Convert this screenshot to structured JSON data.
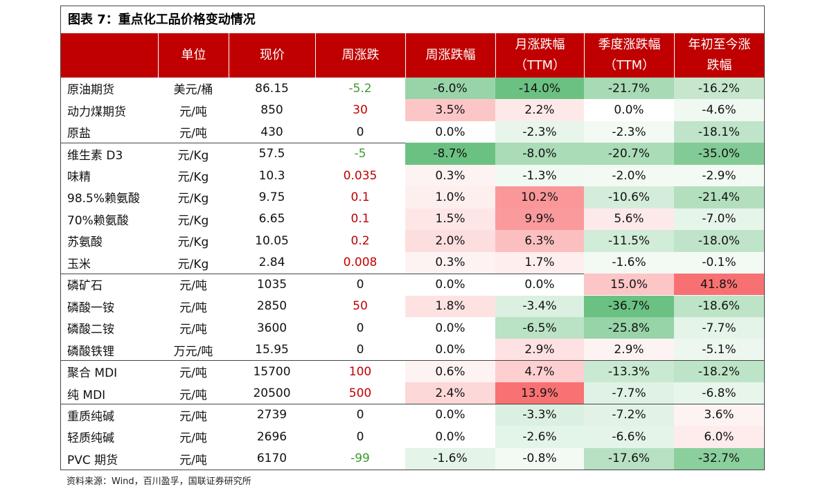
{
  "title": "图表 7：重点化工品价格变动情况",
  "table": {
    "headers": [
      [
        "单位"
      ],
      [
        "现价"
      ],
      [
        "周涨跌"
      ],
      [
        "周涨跌幅"
      ],
      [
        "月涨跌幅",
        "（TTM）"
      ],
      [
        "季度涨跌幅",
        "（TTM）"
      ],
      [
        "年初至今涨",
        "跌幅"
      ]
    ],
    "groups": [
      [
        [
          "原油期货",
          "美元/桶",
          "86.15",
          "-5.2",
          "-6.0%",
          "-14.0%",
          "-21.7%",
          "-16.2%"
        ],
        [
          "动力煤期货",
          "元/吨",
          "850",
          "30",
          "3.5%",
          "2.2%",
          "0.0%",
          "-4.6%"
        ],
        [
          "原盐",
          "元/吨",
          "430",
          "0",
          "0.0%",
          "-2.3%",
          "-2.3%",
          "-18.1%"
        ]
      ],
      [
        [
          "维生素 D3",
          "元/Kg",
          "57.5",
          "-5",
          "-8.7%",
          "-8.0%",
          "-20.7%",
          "-35.0%"
        ],
        [
          "味精",
          "元/Kg",
          "10.3",
          "0.035",
          "0.3%",
          "-1.3%",
          "-2.0%",
          "-2.9%"
        ],
        [
          "98.5%赖氨酸",
          "元/Kg",
          "9.75",
          "0.1",
          "1.0%",
          "10.2%",
          "-10.6%",
          "-21.4%"
        ],
        [
          "70%赖氨酸",
          "元/Kg",
          "6.65",
          "0.1",
          "1.5%",
          "9.9%",
          "5.6%",
          "-7.0%"
        ],
        [
          "苏氨酸",
          "元/Kg",
          "10.05",
          "0.2",
          "2.0%",
          "6.3%",
          "-11.5%",
          "-18.0%"
        ],
        [
          "玉米",
          "元/Kg",
          "2.84",
          "0.008",
          "0.3%",
          "1.7%",
          "-1.6%",
          "-0.1%"
        ]
      ],
      [
        [
          "磷矿石",
          "元/吨",
          "1035",
          "0",
          "0.0%",
          "0.0%",
          "15.0%",
          "41.8%"
        ],
        [
          "磷酸一铵",
          "元/吨",
          "2850",
          "50",
          "1.8%",
          "-3.4%",
          "-36.7%",
          "-18.6%"
        ],
        [
          "磷酸二铵",
          "元/吨",
          "3600",
          "0",
          "0.0%",
          "-6.5%",
          "-25.8%",
          "-7.7%"
        ],
        [
          "磷酸铁锂",
          "万元/吨",
          "15.95",
          "0",
          "0.0%",
          "2.9%",
          "2.9%",
          "-5.1%"
        ]
      ],
      [
        [
          "聚合 MDI",
          "元/吨",
          "15700",
          "100",
          "0.6%",
          "4.7%",
          "-13.3%",
          "-18.2%"
        ],
        [
          "纯 MDI",
          "元/吨",
          "20500",
          "500",
          "2.4%",
          "13.9%",
          "-7.7%",
          "-6.8%"
        ]
      ],
      [
        [
          "重质纯碱",
          "元/吨",
          "2739",
          "0",
          "0.0%",
          "-3.3%",
          "-7.2%",
          "3.6%"
        ],
        [
          "轻质纯碱",
          "元/吨",
          "2696",
          "0",
          "0.0%",
          "-2.6%",
          "-6.6%",
          "6.0%"
        ],
        [
          "PVC 期货",
          "元/吨",
          "6170",
          "-99",
          "-1.6%",
          "-0.8%",
          "-17.6%",
          "-32.7%"
        ]
      ]
    ]
  },
  "source": "资料来源：Wind，百川盈孚，国联证券研究所"
}
